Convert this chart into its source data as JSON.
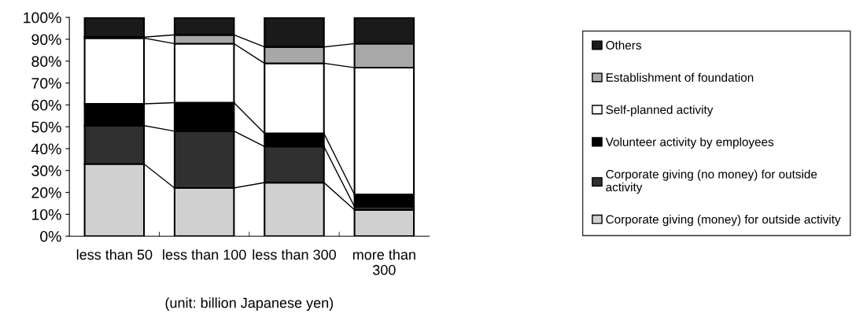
{
  "chart_data": {
    "type": "bar",
    "stacked": true,
    "xlabel": "(unit: billion Japanese yen)",
    "categories": [
      "less than 50",
      "less than 100",
      "less than 300",
      "more than\n300"
    ],
    "series": [
      {
        "name": "Corporate giving (money) for outside activity",
        "color": "#d0d0d0",
        "values": [
          33,
          22,
          24.5,
          12
        ]
      },
      {
        "name": "Corporate giving (no money) for outside\nactivity",
        "color": "#303030",
        "values": [
          17.5,
          26,
          16.5,
          1.5
        ]
      },
      {
        "name": "Volunteer activity by employees",
        "color": "#000000",
        "values": [
          10,
          13,
          6,
          5.5
        ]
      },
      {
        "name": "Self-planned activity",
        "color": "#ffffff",
        "values": [
          30,
          27,
          32,
          58
        ]
      },
      {
        "name": "Establishment of foundation",
        "color": "#a8a8a8",
        "values": [
          0.5,
          4,
          7.5,
          11
        ]
      },
      {
        "name": "Others",
        "color": "#1a1a1a",
        "values": [
          9,
          8,
          13.5,
          12
        ]
      }
    ],
    "ylim": [
      0,
      100
    ],
    "yticks": [
      {
        "value": 0,
        "label": "0%"
      },
      {
        "value": 10,
        "label": "10%"
      },
      {
        "value": 20,
        "label": "20%"
      },
      {
        "value": 30,
        "label": "30%"
      },
      {
        "value": 40,
        "label": "40%"
      },
      {
        "value": 50,
        "label": "50%"
      },
      {
        "value": 60,
        "label": "60%"
      },
      {
        "value": 70,
        "label": "70%"
      },
      {
        "value": 80,
        "label": "80%"
      },
      {
        "value": 90,
        "label": "90%"
      },
      {
        "value": 100,
        "label": "100%"
      }
    ],
    "legend": "right",
    "grid": false
  }
}
